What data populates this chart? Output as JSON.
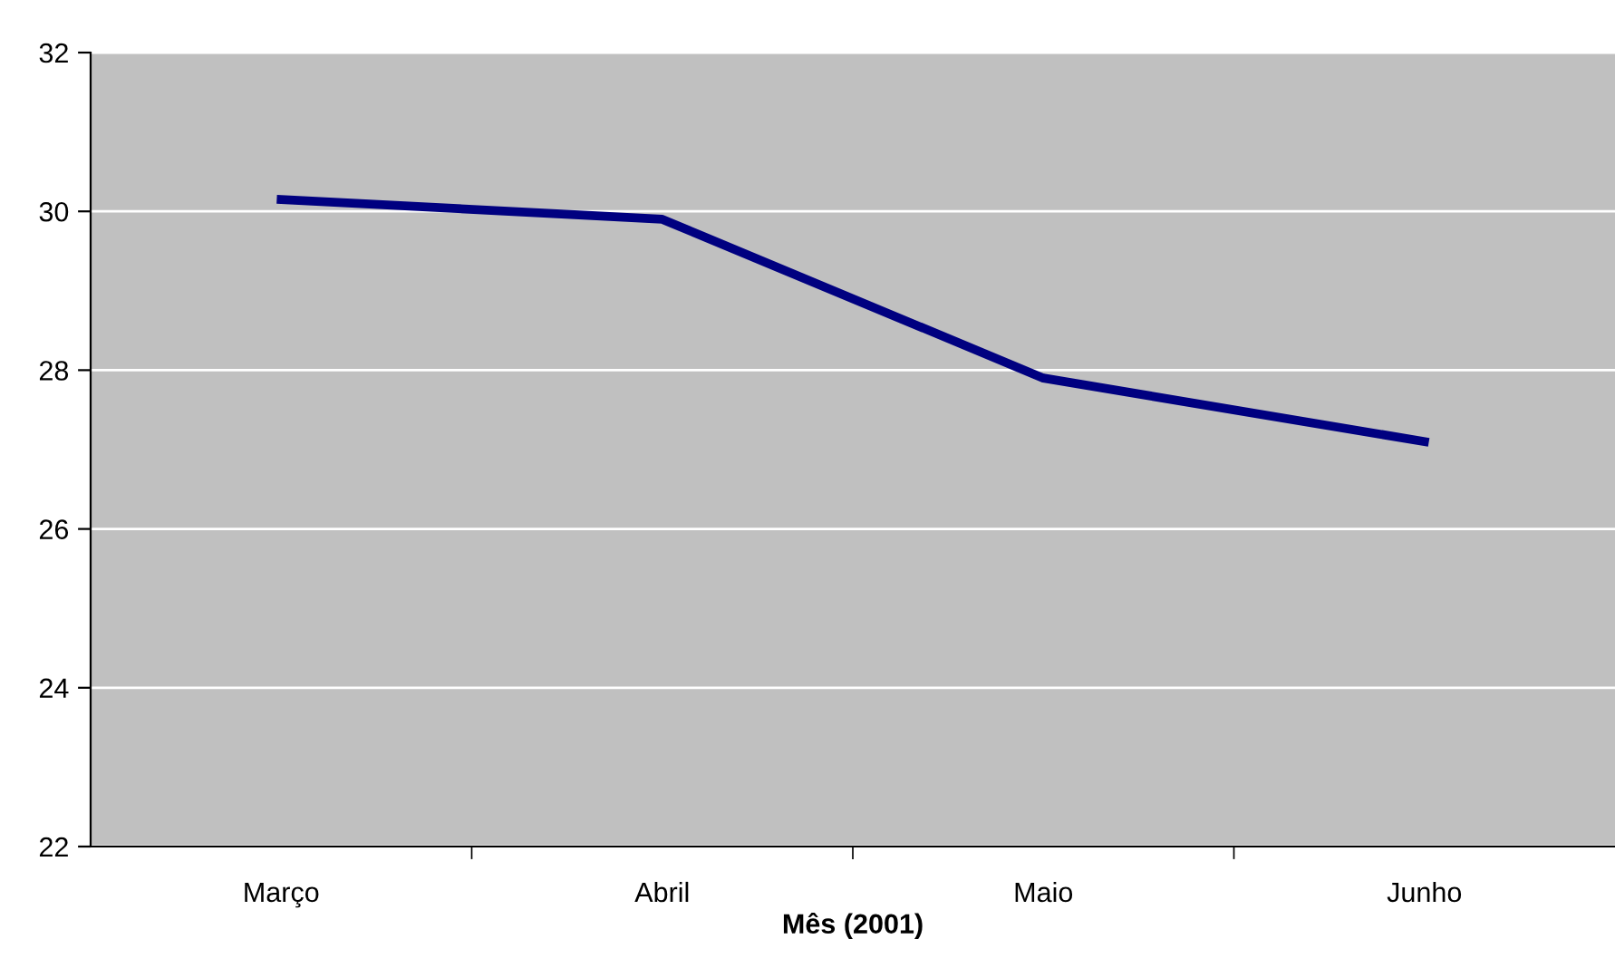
{
  "chart_data": {
    "type": "line",
    "xlabel": "Mês (2001)",
    "categories": [
      "Março",
      "Abril",
      "Maio",
      "Junho"
    ],
    "series": [
      {
        "color": "#000080",
        "values": [
          30.15,
          29.9,
          27.9,
          27.1
        ]
      }
    ],
    "ylim": [
      22,
      32
    ],
    "yticks": [
      22,
      24,
      26,
      28,
      30,
      32
    ],
    "grid": "y",
    "legend": false,
    "marker": "none",
    "line_style": "solid"
  }
}
